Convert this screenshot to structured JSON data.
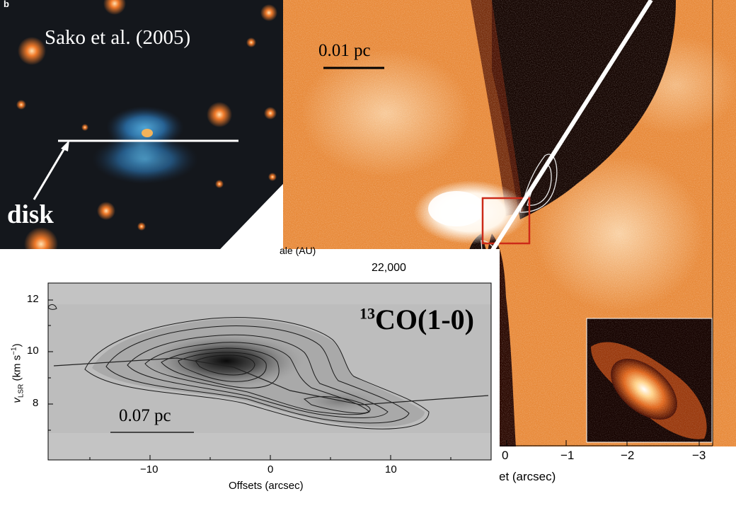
{
  "optical_panel": {
    "panel_letter": "b",
    "citation": "Sako et al. (2005)",
    "disk_label": "disk"
  },
  "infrared_panel": {
    "scale_bar_label": "0.01 pc",
    "scale_axis_fragment": "ale (AU)",
    "scale_tick_value": "22,000",
    "x_tick_labels": [
      "0",
      "−1",
      "−2",
      "−3"
    ],
    "x_axis_fragment": "et (arcsec)"
  },
  "pv_diagram": {
    "line_label_iso": "13",
    "line_label_text": "CO(1-0)",
    "scale_bar_label": "0.07 pc",
    "ylabel_v": "v",
    "ylabel_sub": "LSR",
    "ylabel_units": "(km s",
    "ylabel_sup": "−1",
    "ylabel_close": ")",
    "xlabel": "Offsets (arcsec)",
    "x_tick_labels": [
      "−10",
      "0",
      "10"
    ],
    "y_tick_labels": [
      "12",
      "10",
      "8"
    ]
  },
  "colors": {
    "optical_bg": "#14171c",
    "infrared_orange": "#e88a3a",
    "infrared_dark": "#140400",
    "box_red": "#cc2a18",
    "pv_grey": "#bdbdbd"
  }
}
